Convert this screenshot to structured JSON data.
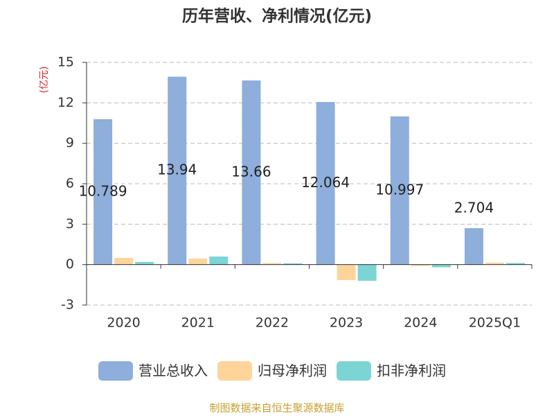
{
  "chart_data": {
    "type": "bar",
    "title": "历年营收、净利情况(亿元)",
    "y_label": "(亿元)",
    "categories": [
      "2020",
      "2021",
      "2022",
      "2023",
      "2024",
      "2025Q1"
    ],
    "series": [
      {
        "name": "营业总收入",
        "color": "#8eaedb",
        "values": [
          10.789,
          13.94,
          13.66,
          12.064,
          10.997,
          2.704
        ],
        "show_labels": true
      },
      {
        "name": "归母净利润",
        "color": "#fdd59a",
        "values": [
          0.5,
          0.45,
          0.12,
          -1.15,
          -0.1,
          0.15
        ]
      },
      {
        "name": "扣非净利润",
        "color": "#7dd4d4",
        "values": [
          0.2,
          0.6,
          0.1,
          -1.2,
          -0.2,
          0.12
        ]
      }
    ],
    "ylim": [
      -3,
      15
    ],
    "yticks": [
      -3,
      0,
      3,
      6,
      9,
      12,
      15
    ],
    "grid": true,
    "source": "制图数据来自恒生聚源数据库"
  }
}
